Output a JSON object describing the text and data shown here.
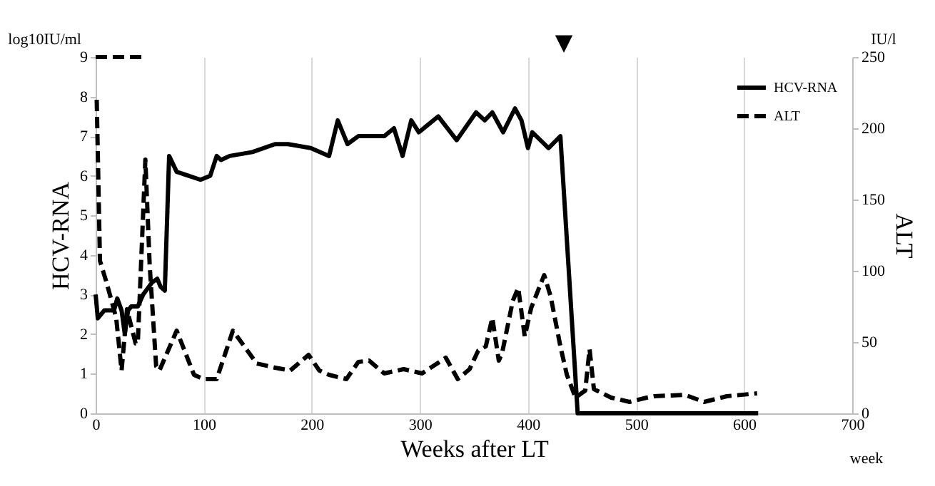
{
  "chart_data": {
    "type": "line",
    "xlabel": "Weeks after LT",
    "ylabel": "HCV-RNA",
    "y2label": "ALT",
    "xlim": [
      0,
      700
    ],
    "xticks": [
      0,
      100,
      200,
      300,
      400,
      500,
      600,
      700
    ],
    "ylim": [
      0,
      9
    ],
    "yticks": [
      0,
      1,
      2,
      3,
      4,
      5,
      6,
      7,
      8,
      9
    ],
    "y2lim": [
      0,
      250
    ],
    "y2ticks": [
      0,
      50,
      100,
      150,
      200,
      250
    ],
    "grid": "x",
    "legend": "top right",
    "marker": "none",
    "annotations": [
      "log10IU/ml",
      "IU/l",
      "week",
      "▼"
    ],
    "series": [
      {
        "color": "#000000",
        "line_style": "dashed",
        "x": [
          0,
          45
        ],
        "values": [
          9,
          9
        ]
      },
      {
        "name": "HCV-RNA",
        "color": "#000000",
        "line_style": "solid",
        "x": [
          0,
          2,
          8,
          17,
          20,
          24,
          27,
          30,
          33,
          39,
          44,
          52,
          57,
          60,
          64,
          68,
          75,
          97,
          106,
          112,
          116,
          124,
          145,
          166,
          178,
          199,
          216,
          224,
          233,
          243,
          267,
          276,
          284,
          292,
          299,
          317,
          334,
          352,
          360,
          367,
          377,
          388,
          394,
          400,
          404,
          419,
          430,
          446,
          613
        ],
        "values": [
          3.0,
          2.4,
          2.6,
          2.6,
          2.9,
          2.6,
          2.0,
          2.6,
          2.7,
          2.7,
          3.0,
          3.3,
          3.4,
          3.2,
          3.1,
          6.5,
          6.1,
          5.9,
          6.0,
          6.5,
          6.4,
          6.5,
          6.6,
          6.8,
          6.8,
          6.7,
          6.5,
          7.4,
          6.8,
          7.0,
          7.0,
          7.2,
          6.5,
          7.4,
          7.1,
          7.5,
          6.9,
          7.6,
          7.4,
          7.6,
          7.1,
          7.7,
          7.4,
          6.7,
          7.1,
          6.7,
          7.0,
          0,
          0
        ]
      },
      {
        "name": "ALT",
        "color": "#000000",
        "line_style": "dashed",
        "axis": "y2",
        "x": [
          1,
          4,
          10,
          19,
          24,
          29,
          33,
          37,
          39,
          46,
          50,
          56,
          59,
          75,
          91,
          100,
          112,
          127,
          149,
          166,
          180,
          197,
          207,
          216,
          232,
          243,
          253,
          267,
          285,
          302,
          314,
          324,
          335,
          346,
          354,
          361,
          367,
          373,
          376,
          386,
          391,
          397,
          403,
          415,
          421,
          430,
          436,
          444,
          453,
          457,
          461,
          477,
          494,
          510,
          517,
          545,
          563,
          584,
          612
        ],
        "values": [
          220,
          107,
          92,
          67,
          30,
          73,
          61,
          49,
          49,
          178,
          104,
          33,
          30,
          58,
          27,
          24,
          24,
          58,
          35,
          32,
          30,
          41,
          30,
          27,
          24,
          36,
          37,
          28,
          31,
          28,
          34,
          39,
          24,
          31,
          44,
          47,
          67,
          37,
          42,
          79,
          88,
          54,
          74,
          97,
          82,
          47,
          27,
          11,
          16,
          45,
          17,
          11,
          8,
          11,
          12,
          13,
          8,
          12,
          14
        ]
      }
    ]
  }
}
